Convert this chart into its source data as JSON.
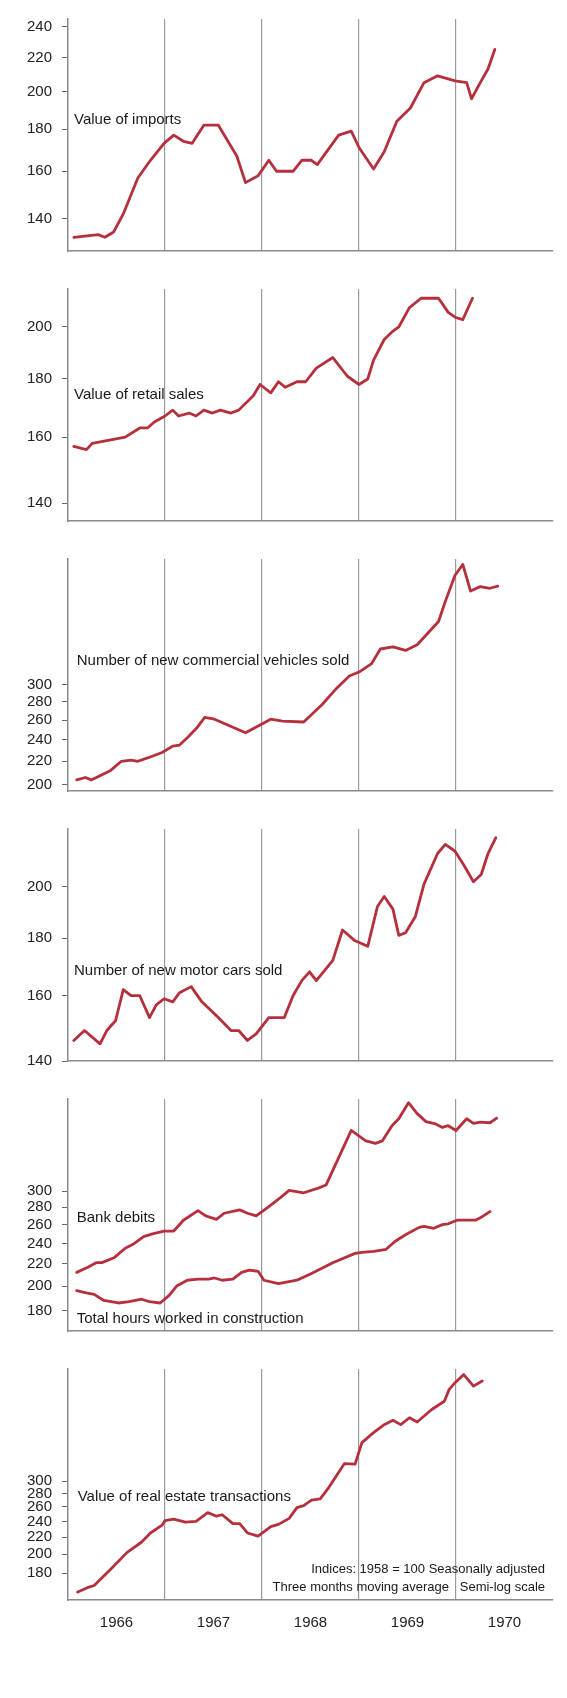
{
  "chart_data": [
    {
      "type": "line",
      "log": true,
      "grid": "x",
      "tick_labels": "y",
      "xlim": [
        1966,
        1971
      ],
      "xticks": [
        1967,
        1968,
        1969,
        1970
      ],
      "ylim": [
        128,
        245
      ],
      "yticks": [
        140,
        160,
        180,
        200,
        220,
        240
      ],
      "series": [
        {
          "name": "Value of imports",
          "color": "#b5303c",
          "x": [
            1966.06,
            1966.31,
            1966.38,
            1966.47,
            1966.57,
            1966.72,
            1966.85,
            1966.99,
            1967.09,
            1967.19,
            1967.28,
            1967.4,
            1967.55,
            1967.74,
            1967.83,
            1967.96,
            1968.07,
            1968.15,
            1968.32,
            1968.41,
            1968.51,
            1968.57,
            1968.79,
            1968.92,
            1969.0,
            1969.15,
            1969.26,
            1969.39,
            1969.53,
            1969.67,
            1969.81,
            1969.99,
            1970.11,
            1970.16,
            1970.25,
            1970.33,
            1970.4
          ],
          "values": [
            133,
            134,
            133,
            135,
            142,
            157,
            165,
            173,
            177,
            174,
            173,
            182,
            182,
            167,
            155,
            158,
            165,
            160,
            160,
            165,
            165,
            163,
            177,
            179,
            171,
            161,
            169,
            184,
            191,
            205,
            209,
            206,
            205,
            196,
            205,
            213,
            225
          ]
        }
      ]
    },
    {
      "type": "line",
      "log": true,
      "grid": "x",
      "tick_labels": "y",
      "xlim": [
        1966,
        1971
      ],
      "xticks": [
        1967,
        1968,
        1969,
        1970
      ],
      "ylim": [
        135,
        216
      ],
      "yticks": [
        140,
        160,
        180,
        200
      ],
      "series": [
        {
          "name": "Value of retail sales",
          "color": "#b5303c",
          "x": [
            1966.06,
            1966.19,
            1966.25,
            1966.59,
            1966.74,
            1966.82,
            1966.89,
            1967.0,
            1967.08,
            1967.14,
            1967.25,
            1967.32,
            1967.4,
            1967.49,
            1967.57,
            1967.68,
            1967.76,
            1967.91,
            1967.98,
            1968.09,
            1968.17,
            1968.24,
            1968.36,
            1968.45,
            1968.56,
            1968.73,
            1968.88,
            1969.0,
            1969.09,
            1969.15,
            1969.26,
            1969.34,
            1969.41,
            1969.52,
            1969.64,
            1969.82,
            1969.92,
            1969.99,
            1970.07,
            1970.17
          ],
          "values": [
            157,
            156,
            158,
            160,
            163,
            163,
            165,
            167,
            169,
            167,
            168,
            167,
            169,
            168,
            169,
            168,
            169,
            174,
            178,
            175,
            179,
            177,
            179,
            179,
            184,
            188,
            181,
            178,
            180,
            187,
            195,
            198,
            200,
            208,
            212,
            212,
            206,
            204,
            203,
            212
          ]
        }
      ]
    },
    {
      "type": "line",
      "log": true,
      "grid": "x",
      "tick_labels": "y",
      "xlim": [
        1966,
        1971
      ],
      "xticks": [
        1967,
        1968,
        1969,
        1970
      ],
      "ylim": [
        195,
        500
      ],
      "yticks": [
        200,
        220,
        240,
        260,
        280,
        300
      ],
      "series": [
        {
          "name": "Number of new commercial vehicles sold",
          "color": "#b5303c",
          "x": [
            1966.09,
            1966.18,
            1966.24,
            1966.44,
            1966.55,
            1966.65,
            1966.72,
            1966.82,
            1966.97,
            1967.08,
            1967.15,
            1967.23,
            1967.32,
            1967.41,
            1967.51,
            1967.83,
            1967.98,
            1968.09,
            1968.21,
            1968.43,
            1968.62,
            1968.77,
            1968.9,
            1969.0,
            1969.13,
            1969.22,
            1969.35,
            1969.48,
            1969.6,
            1969.82,
            1969.89,
            1969.99,
            1970.07,
            1970.15,
            1970.25,
            1970.35,
            1970.43
          ],
          "values": [
            204,
            206,
            204,
            212,
            220,
            221,
            220,
            223,
            228,
            234,
            235,
            242,
            251,
            263,
            261,
            247,
            255,
            261,
            259,
            258,
            277,
            296,
            311,
            316,
            327,
            347,
            350,
            345,
            353,
            388,
            421,
            468,
            489,
            439,
            447,
            444,
            448
          ]
        }
      ]
    },
    {
      "type": "line",
      "log": true,
      "grid": "x",
      "tick_labels": "y",
      "xlim": [
        1966,
        1971
      ],
      "xticks": [
        1967,
        1968,
        1969,
        1970
      ],
      "ylim": [
        140,
        225
      ],
      "yticks": [
        140,
        160,
        180,
        200
      ],
      "series": [
        {
          "name": "Number of new motor cars sold",
          "color": "#b5303c",
          "x": [
            1966.06,
            1966.17,
            1966.33,
            1966.4,
            1966.49,
            1966.57,
            1966.65,
            1966.74,
            1966.84,
            1966.91,
            1966.99,
            1967.08,
            1967.15,
            1967.27,
            1967.38,
            1967.55,
            1967.68,
            1967.76,
            1967.85,
            1967.94,
            1968.07,
            1968.23,
            1968.32,
            1968.41,
            1968.49,
            1968.56,
            1968.73,
            1968.83,
            1968.96,
            1969.09,
            1969.19,
            1969.26,
            1969.35,
            1969.41,
            1969.48,
            1969.58,
            1969.67,
            1969.81,
            1969.89,
            1969.99,
            1970.08,
            1970.18,
            1970.26,
            1970.33,
            1970.41
          ],
          "values": [
            146,
            149,
            145,
            149,
            152,
            162,
            160,
            160,
            153,
            157,
            159,
            158,
            161,
            163,
            158,
            153,
            149,
            149,
            146,
            148,
            153,
            153,
            160,
            165,
            168,
            165,
            172,
            183,
            179,
            177,
            192,
            196,
            191,
            181,
            182,
            188,
            201,
            214,
            218,
            215,
            209,
            202,
            205,
            214,
            221
          ]
        }
      ]
    },
    {
      "type": "line",
      "log": true,
      "grid": "x",
      "tick_labels": "y",
      "xlim": [
        1966,
        1971
      ],
      "xticks": [
        1967,
        1968,
        1969,
        1970
      ],
      "ylim": [
        165,
        445
      ],
      "yticks": [
        180,
        200,
        220,
        240,
        260,
        280,
        300
      ],
      "series": [
        {
          "name": "Bank debits",
          "color": "#b5303c",
          "x": [
            1966.09,
            1966.21,
            1966.29,
            1966.35,
            1966.48,
            1966.59,
            1966.67,
            1966.78,
            1966.87,
            1966.99,
            1967.09,
            1967.19,
            1967.34,
            1967.42,
            1967.53,
            1967.61,
            1967.77,
            1967.85,
            1967.94,
            1968.06,
            1968.19,
            1968.28,
            1968.43,
            1968.58,
            1968.66,
            1968.92,
            1969.07,
            1969.17,
            1969.24,
            1969.34,
            1969.41,
            1969.51,
            1969.6,
            1969.69,
            1969.79,
            1969.86,
            1969.92,
            1970.0,
            1970.11,
            1970.18,
            1970.25,
            1970.35,
            1970.42
          ],
          "values": [
            212,
            217,
            221,
            221,
            226,
            235,
            239,
            247,
            250,
            253,
            253,
            265,
            276,
            270,
            266,
            273,
            277,
            273,
            270,
            280,
            292,
            301,
            298,
            304,
            308,
            389,
            372,
            368,
            372,
            397,
            409,
            438,
            418,
            404,
            400,
            394,
            397,
            389,
            409,
            401,
            403,
            402,
            410
          ]
        },
        {
          "name": "Total hours worked in construction",
          "color": "#b5303c",
          "x": [
            1966.09,
            1966.2,
            1966.27,
            1966.37,
            1966.52,
            1966.63,
            1966.76,
            1966.84,
            1966.95,
            1967.04,
            1967.12,
            1967.23,
            1967.34,
            1967.45,
            1967.51,
            1967.59,
            1967.7,
            1967.79,
            1967.87,
            1967.96,
            1968.02,
            1968.17,
            1968.36,
            1968.51,
            1968.73,
            1968.96,
            1969.03,
            1969.15,
            1969.28,
            1969.37,
            1969.48,
            1969.62,
            1969.67,
            1969.77,
            1969.86,
            1969.92,
            1970.01,
            1970.2,
            1970.27,
            1970.35
          ],
          "values": [
            196,
            194,
            193,
            188,
            186,
            187,
            189,
            187,
            186,
            192,
            200,
            205,
            206,
            206,
            207,
            205,
            206,
            212,
            214,
            213,
            205,
            202,
            205,
            211,
            221,
            230,
            231,
            232,
            234,
            242,
            249,
            257,
            258,
            256,
            260,
            261,
            265,
            265,
            269,
            275
          ]
        }
      ]
    },
    {
      "type": "line",
      "log": true,
      "grid": "x",
      "xlim": [
        1966,
        1971
      ],
      "xticks": [
        {
          "value": 1967,
          "label": null
        },
        {
          "value": 1968,
          "label": null
        },
        {
          "value": 1969,
          "label": null
        },
        {
          "value": 1970,
          "label": null
        },
        {
          "value": 1966.5,
          "label": "1966"
        },
        {
          "value": 1967.5,
          "label": "1967"
        },
        {
          "value": 1968.5,
          "label": "1968"
        },
        {
          "value": 1969.5,
          "label": "1969"
        },
        {
          "value": 1970.5,
          "label": "1970"
        }
      ],
      "ylim": [
        155,
        560
      ],
      "yticks": [
        180,
        200,
        220,
        240,
        260,
        280,
        300
      ],
      "annotations": [
        "Indices: 1958 = 100 Seasonally adjusted",
        "Three months moving average   Semi-log scale"
      ],
      "series": [
        {
          "name": "Value of real estate transactions",
          "color": "#b5303c",
          "x": [
            1966.1,
            1966.2,
            1966.27,
            1966.44,
            1966.61,
            1966.76,
            1966.85,
            1966.97,
            1967.0,
            1967.09,
            1967.21,
            1967.32,
            1967.44,
            1967.53,
            1967.59,
            1967.7,
            1967.77,
            1967.85,
            1967.96,
            1968.09,
            1968.17,
            1968.28,
            1968.36,
            1968.43,
            1968.51,
            1968.6,
            1968.69,
            1968.85,
            1968.96,
            1969.03,
            1969.15,
            1969.26,
            1969.35,
            1969.43,
            1969.52,
            1969.6,
            1969.75,
            1969.88,
            1969.93,
            1969.99,
            1970.08,
            1970.18,
            1970.27
          ],
          "values": [
            162,
            166,
            168,
            184,
            202,
            214,
            225,
            235,
            241,
            243,
            239,
            240,
            252,
            247,
            249,
            237,
            237,
            225,
            221,
            233,
            236,
            244,
            259,
            262,
            270,
            272,
            290,
            331,
            330,
            372,
            393,
            411,
            421,
            411,
            427,
            417,
            447,
            468,
            500,
            519,
            543,
            509,
            524
          ]
        }
      ]
    }
  ]
}
